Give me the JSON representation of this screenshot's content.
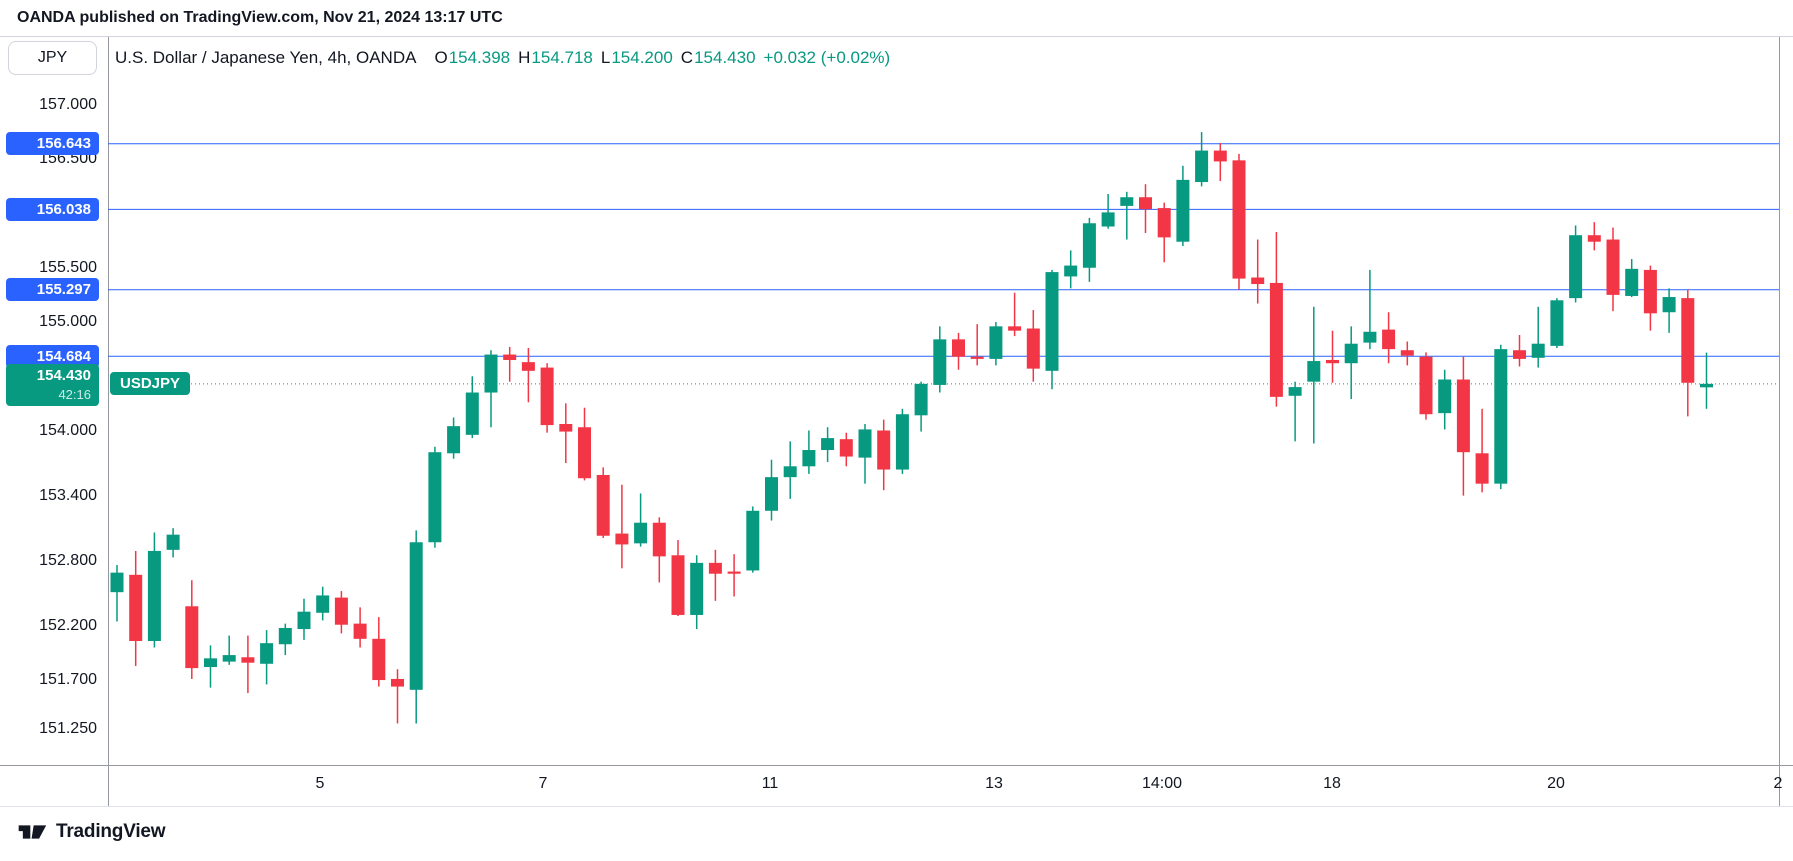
{
  "page": {
    "attribution": "OANDA published on TradingView.com, Nov 21, 2024 13:17 UTC",
    "footer_logo_text": "TradingView"
  },
  "toolbar": {
    "symbol_button_label": "JPY"
  },
  "legend": {
    "title": "U.S. Dollar / Japanese Yen, 4h, OANDA",
    "ohlc": [
      [
        "O",
        "154.398"
      ],
      [
        "H",
        "154.718"
      ],
      [
        "L",
        "154.200"
      ],
      [
        "C",
        "154.430"
      ]
    ],
    "change": "+0.032 (+0.02%)"
  },
  "chart_data": {
    "type": "candlestick",
    "symbol": "USDJPY",
    "exchange": "OANDA",
    "interval": "4h",
    "colors": {
      "up": "#089981",
      "down": "#F23645",
      "alert_line": "#2962FF",
      "text": "#131722"
    },
    "y_axis": {
      "ticks": [
        "157.000",
        "156.500",
        "155.500",
        "155.000",
        "154.000",
        "153.400",
        "152.800",
        "152.200",
        "151.700",
        "151.250"
      ],
      "top_price": 157.0,
      "bottom_price": 150.9
    },
    "x_axis": {
      "ticks": [
        "5",
        "7",
        "11",
        "13",
        "14:00",
        "18",
        "20",
        "2"
      ]
    },
    "alert_lines": [
      "156.643",
      "156.038",
      "155.297",
      "154.684"
    ],
    "current": {
      "price": "154.430",
      "countdown": "42:16",
      "tag": "USDJPY"
    },
    "candles_ohlc": [
      [
        152.51,
        152.76,
        152.24,
        152.69
      ],
      [
        152.67,
        152.89,
        151.83,
        152.06
      ],
      [
        152.06,
        153.06,
        152.0,
        152.89
      ],
      [
        152.9,
        153.1,
        152.83,
        153.04
      ],
      [
        152.38,
        152.62,
        151.71,
        151.81
      ],
      [
        151.82,
        152.02,
        151.63,
        151.9
      ],
      [
        151.87,
        152.11,
        151.84,
        151.93
      ],
      [
        151.91,
        152.11,
        151.58,
        151.86
      ],
      [
        151.85,
        152.16,
        151.66,
        152.04
      ],
      [
        152.03,
        152.22,
        151.93,
        152.18
      ],
      [
        152.17,
        152.45,
        152.07,
        152.33
      ],
      [
        152.32,
        152.56,
        152.25,
        152.48
      ],
      [
        152.46,
        152.52,
        152.13,
        152.21
      ],
      [
        152.22,
        152.37,
        152.0,
        152.08
      ],
      [
        152.08,
        152.28,
        151.64,
        151.7
      ],
      [
        151.71,
        151.8,
        151.3,
        151.64
      ],
      [
        151.61,
        153.08,
        151.3,
        152.97
      ],
      [
        152.97,
        153.85,
        152.92,
        153.8
      ],
      [
        153.79,
        154.12,
        153.74,
        154.04
      ],
      [
        153.96,
        154.5,
        153.93,
        154.35
      ],
      [
        154.35,
        154.74,
        154.03,
        154.7
      ],
      [
        154.7,
        154.77,
        154.45,
        154.65
      ],
      [
        154.63,
        154.76,
        154.26,
        154.55
      ],
      [
        154.58,
        154.62,
        153.98,
        154.05
      ],
      [
        154.06,
        154.25,
        153.7,
        153.99
      ],
      [
        154.03,
        154.21,
        153.54,
        153.56
      ],
      [
        153.59,
        153.66,
        153.01,
        153.03
      ],
      [
        153.05,
        153.5,
        152.73,
        152.95
      ],
      [
        152.96,
        153.42,
        152.93,
        153.15
      ],
      [
        153.15,
        153.2,
        152.6,
        152.84
      ],
      [
        152.85,
        152.99,
        152.29,
        152.3
      ],
      [
        152.3,
        152.85,
        152.17,
        152.78
      ],
      [
        152.78,
        152.9,
        152.43,
        152.68
      ],
      [
        152.7,
        152.86,
        152.47,
        152.68
      ],
      [
        152.71,
        153.3,
        152.69,
        153.26
      ],
      [
        153.26,
        153.73,
        153.17,
        153.57
      ],
      [
        153.57,
        153.9,
        153.37,
        153.67
      ],
      [
        153.67,
        154.0,
        153.6,
        153.82
      ],
      [
        153.82,
        154.03,
        153.71,
        153.93
      ],
      [
        153.92,
        153.98,
        153.67,
        153.76
      ],
      [
        153.75,
        154.06,
        153.51,
        154.01
      ],
      [
        154.0,
        154.1,
        153.45,
        153.64
      ],
      [
        153.64,
        154.2,
        153.6,
        154.15
      ],
      [
        154.14,
        154.45,
        153.99,
        154.43
      ],
      [
        154.42,
        154.96,
        154.35,
        154.84
      ],
      [
        154.84,
        154.9,
        154.56,
        154.68
      ],
      [
        154.68,
        154.98,
        154.6,
        154.66
      ],
      [
        154.66,
        155.0,
        154.6,
        154.96
      ],
      [
        154.96,
        155.27,
        154.87,
        154.92
      ],
      [
        154.94,
        155.11,
        154.45,
        154.57
      ],
      [
        154.55,
        155.48,
        154.38,
        155.46
      ],
      [
        155.42,
        155.66,
        155.31,
        155.52
      ],
      [
        155.5,
        155.96,
        155.37,
        155.91
      ],
      [
        155.88,
        156.18,
        155.86,
        156.01
      ],
      [
        156.07,
        156.2,
        155.76,
        156.15
      ],
      [
        156.15,
        156.27,
        155.82,
        156.04
      ],
      [
        156.05,
        156.1,
        155.55,
        155.78
      ],
      [
        155.74,
        156.44,
        155.7,
        156.31
      ],
      [
        156.29,
        156.75,
        156.25,
        156.58
      ],
      [
        156.58,
        156.65,
        156.3,
        156.48
      ],
      [
        156.49,
        156.55,
        155.3,
        155.4
      ],
      [
        155.41,
        155.76,
        155.17,
        155.35
      ],
      [
        155.36,
        155.83,
        154.22,
        154.31
      ],
      [
        154.32,
        154.45,
        153.9,
        154.4
      ],
      [
        154.45,
        155.14,
        153.88,
        154.64
      ],
      [
        154.65,
        154.92,
        154.44,
        154.62
      ],
      [
        154.62,
        154.96,
        154.29,
        154.8
      ],
      [
        154.81,
        155.48,
        154.75,
        154.91
      ],
      [
        154.93,
        155.09,
        154.62,
        154.75
      ],
      [
        154.74,
        154.82,
        154.6,
        154.69
      ],
      [
        154.68,
        154.72,
        154.1,
        154.15
      ],
      [
        154.16,
        154.56,
        154.01,
        154.47
      ],
      [
        154.47,
        154.68,
        153.4,
        153.8
      ],
      [
        153.79,
        154.2,
        153.43,
        153.51
      ],
      [
        153.51,
        154.79,
        153.46,
        154.75
      ],
      [
        154.74,
        154.88,
        154.59,
        154.66
      ],
      [
        154.67,
        155.14,
        154.58,
        154.8
      ],
      [
        154.78,
        155.22,
        154.76,
        155.2
      ],
      [
        155.22,
        155.89,
        155.18,
        155.8
      ],
      [
        155.8,
        155.92,
        155.66,
        155.74
      ],
      [
        155.76,
        155.87,
        155.1,
        155.25
      ],
      [
        155.24,
        155.58,
        155.23,
        155.49
      ],
      [
        155.48,
        155.52,
        154.92,
        155.08
      ],
      [
        155.09,
        155.31,
        154.9,
        155.23
      ],
      [
        155.22,
        155.3,
        154.13,
        154.44
      ],
      [
        154.398,
        154.718,
        154.2,
        154.43
      ]
    ]
  }
}
